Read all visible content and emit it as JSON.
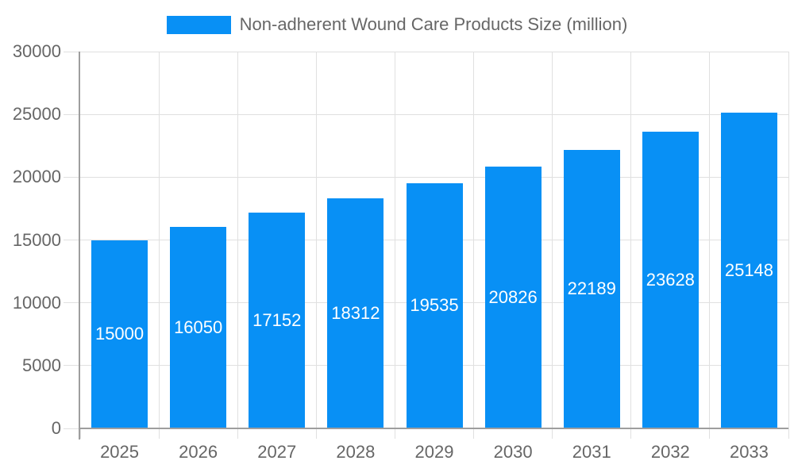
{
  "legend": {
    "label": "Non-adherent Wound Care Products Size (million)"
  },
  "colors": {
    "bar": "#0890F5",
    "grid": "#e0e0e0",
    "axis": "#9e9e9e",
    "text": "#666666",
    "value_label": "#ffffff"
  },
  "chart_data": {
    "type": "bar",
    "title": "Non-adherent Wound Care Products Size (million)",
    "categories": [
      "2025",
      "2026",
      "2027",
      "2028",
      "2029",
      "2030",
      "2031",
      "2032",
      "2033"
    ],
    "values": [
      15000,
      16050,
      17152,
      18312,
      19535,
      20826,
      22189,
      23628,
      25148
    ],
    "xlabel": "",
    "ylabel": "",
    "ylim": [
      0,
      30000
    ],
    "yticks": [
      0,
      5000,
      10000,
      15000,
      20000,
      25000,
      30000
    ],
    "grid": true,
    "legend_position": "top",
    "value_labels_position": "inside-center"
  }
}
